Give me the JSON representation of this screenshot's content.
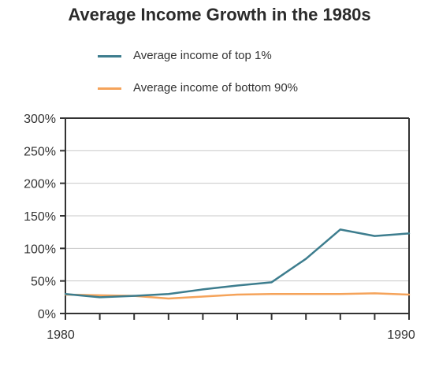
{
  "chart_data": {
    "type": "line",
    "title": "Average Income Growth in the 1980s",
    "xlabel": "",
    "ylabel": "",
    "x": [
      1980,
      1981,
      1982,
      1983,
      1984,
      1985,
      1986,
      1987,
      1988,
      1989,
      1990
    ],
    "x_tick_labels": [
      "1980",
      "1990"
    ],
    "y_tick_labels": [
      "0%",
      "50%",
      "100%",
      "150%",
      "200%",
      "250%",
      "300%"
    ],
    "ylim": [
      0,
      300
    ],
    "xlim": [
      1980,
      1990
    ],
    "grid": true,
    "legend_position": "top",
    "series": [
      {
        "name": "Average income of top 1%",
        "color": "#3d7d8e",
        "values": [
          30,
          25,
          27,
          30,
          37,
          43,
          48,
          84,
          129,
          119,
          123
        ]
      },
      {
        "name": "Average income of bottom 90%",
        "color": "#f5a35a",
        "values": [
          29,
          28,
          27,
          23,
          26,
          29,
          30,
          30,
          30,
          31,
          29
        ]
      }
    ]
  }
}
